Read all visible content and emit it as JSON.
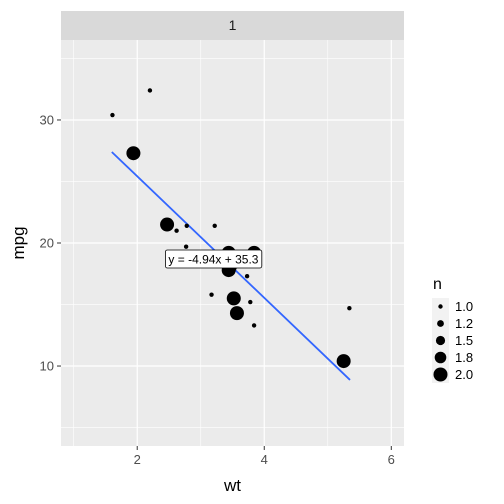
{
  "chart_data": {
    "type": "scatter",
    "facet_label": "1",
    "xlabel": "wt",
    "ylabel": "mpg",
    "xlim": [
      0.8,
      6.2
    ],
    "ylim": [
      3.5,
      36.5
    ],
    "x_ticks": [
      2,
      4,
      6
    ],
    "y_ticks": [
      10,
      20,
      30
    ],
    "grid": true,
    "points": [
      {
        "x": 1.61,
        "y": 30.4,
        "n": 1
      },
      {
        "x": 2.2,
        "y": 32.4,
        "n": 1
      },
      {
        "x": 1.94,
        "y": 27.3,
        "n": 2
      },
      {
        "x": 2.47,
        "y": 21.5,
        "n": 2
      },
      {
        "x": 2.62,
        "y": 21.0,
        "n": 1
      },
      {
        "x": 2.78,
        "y": 21.4,
        "n": 1
      },
      {
        "x": 2.77,
        "y": 19.7,
        "n": 1
      },
      {
        "x": 3.22,
        "y": 21.4,
        "n": 1
      },
      {
        "x": 3.17,
        "y": 15.8,
        "n": 1
      },
      {
        "x": 3.44,
        "y": 19.2,
        "n": 2
      },
      {
        "x": 3.84,
        "y": 19.2,
        "n": 2
      },
      {
        "x": 3.46,
        "y": 18.1,
        "n": 2
      },
      {
        "x": 3.44,
        "y": 17.8,
        "n": 2
      },
      {
        "x": 3.52,
        "y": 15.5,
        "n": 2
      },
      {
        "x": 3.57,
        "y": 14.3,
        "n": 2
      },
      {
        "x": 3.73,
        "y": 17.3,
        "n": 1
      },
      {
        "x": 3.78,
        "y": 15.2,
        "n": 1
      },
      {
        "x": 3.84,
        "y": 13.3,
        "n": 1
      },
      {
        "x": 5.25,
        "y": 10.4,
        "n": 2
      },
      {
        "x": 5.34,
        "y": 14.7,
        "n": 1
      }
    ],
    "fit_line": {
      "intercept": 35.3,
      "slope": -4.94,
      "x_range": [
        1.6,
        5.35
      ],
      "color": "#3366ff"
    },
    "equation_label": {
      "text": "y = -4.94x + 35.3",
      "x": 3.2,
      "y": 18.7
    },
    "legend": {
      "title": "n",
      "position": "right",
      "entries": [
        {
          "label": "1.0",
          "value": 1.0
        },
        {
          "label": "1.2",
          "value": 1.25
        },
        {
          "label": "1.5",
          "value": 1.5
        },
        {
          "label": "1.8",
          "value": 1.75
        },
        {
          "label": "2.0",
          "value": 2.0
        }
      ]
    },
    "colors": {
      "panel": "#ebebeb",
      "strip": "#d9d9d9",
      "grid": "#ffffff",
      "point": "#000000"
    }
  }
}
